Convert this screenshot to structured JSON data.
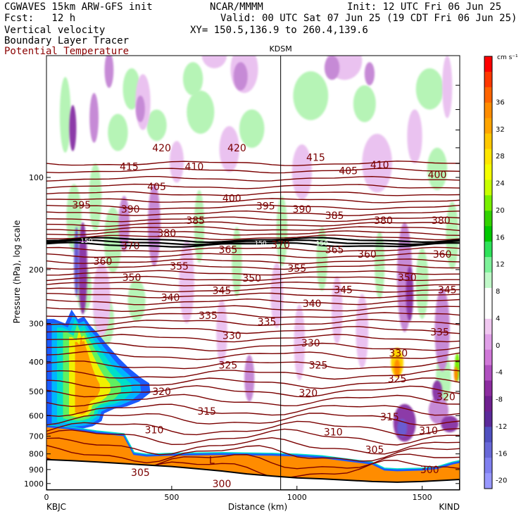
{
  "header": {
    "model": "CGWAVES 15km ARW-GFS init",
    "center": "NCAR/MMMM",
    "init": "Init: 12 UTC Fri 06 Jun 25",
    "fcst": "Fcst:   12 h",
    "valid": "Valid: 00 UTC Sat 07 Jun 25 (19 CDT Fri 06 Jun 25)",
    "field1": "Vertical velocity",
    "xy": "XY= 150.5,136.9 to 260.4,139.6",
    "field2": "Boundary Layer Tracer",
    "field3": "Potential Temperature",
    "field3_color": "#8b0000"
  },
  "chart_data": {
    "type": "heatmap",
    "title": "",
    "xlabel": "Distance (km)",
    "ylabel": "Pressure (hPa), log scale",
    "xlim": [
      0,
      1650
    ],
    "ylim_hpa": [
      1050,
      40
    ],
    "x_ticks": [
      0,
      500,
      1000,
      1500
    ],
    "y_ticks": [
      100,
      200,
      300,
      400,
      500,
      600,
      700,
      800,
      900,
      1000
    ],
    "endpoint_left": "KBJC",
    "endpoint_right": "KIND",
    "marker_station": "KDSM",
    "marker_x_km": 935,
    "colorbar": {
      "units": "cm s⁻¹",
      "labels": [
        "36",
        "32",
        "28",
        "24",
        "20",
        "16",
        "12",
        "8",
        "4",
        "0",
        "-4",
        "-8",
        "-12",
        "-16",
        "-20"
      ],
      "colors": [
        "#ff0000",
        "#ff3800",
        "#ff6400",
        "#ff8c00",
        "#ffa400",
        "#ffc800",
        "#ffe600",
        "#f5ff00",
        "#c8ff00",
        "#78f000",
        "#32d200",
        "#00c800",
        "#2ee25a",
        "#7ef29a",
        "#c0f8c8",
        "#ffffff",
        "#ffffff",
        "#f0c8f0",
        "#e0a0e8",
        "#d078d8",
        "#b050c0",
        "#8c2ca0",
        "#6f2090",
        "#5b2a9a",
        "#5050c0",
        "#6868d8",
        "#8080f0",
        "#9898ff"
      ]
    },
    "theta_contour_labels": [
      {
        "value": "420",
        "x_km": 460,
        "p": 80
      },
      {
        "value": "420",
        "x_km": 760,
        "p": 80
      },
      {
        "value": "415",
        "x_km": 330,
        "p": 92
      },
      {
        "value": "410",
        "x_km": 590,
        "p": 92
      },
      {
        "value": "415",
        "x_km": 1075,
        "p": 86
      },
      {
        "value": "405",
        "x_km": 1205,
        "p": 95
      },
      {
        "value": "410",
        "x_km": 1330,
        "p": 91
      },
      {
        "value": "400",
        "x_km": 1560,
        "p": 98
      },
      {
        "value": "405",
        "x_km": 440,
        "p": 107
      },
      {
        "value": "400",
        "x_km": 740,
        "p": 117
      },
      {
        "value": "395",
        "x_km": 875,
        "p": 124
      },
      {
        "value": "395",
        "x_km": 140,
        "p": 123
      },
      {
        "value": "390",
        "x_km": 335,
        "p": 127
      },
      {
        "value": "385",
        "x_km": 595,
        "p": 138
      },
      {
        "value": "390",
        "x_km": 1020,
        "p": 127
      },
      {
        "value": "385",
        "x_km": 1150,
        "p": 133
      },
      {
        "value": "380",
        "x_km": 1345,
        "p": 138
      },
      {
        "value": "380",
        "x_km": 480,
        "p": 152
      },
      {
        "value": "380",
        "x_km": 1575,
        "p": 138
      },
      {
        "value": "370",
        "x_km": 335,
        "p": 167
      },
      {
        "value": "365",
        "x_km": 725,
        "p": 172
      },
      {
        "value": "370",
        "x_km": 935,
        "p": 166
      },
      {
        "value": "365",
        "x_km": 1150,
        "p": 172
      },
      {
        "value": "360",
        "x_km": 225,
        "p": 188
      },
      {
        "value": "360",
        "x_km": 1280,
        "p": 178
      },
      {
        "value": "360",
        "x_km": 1580,
        "p": 178
      },
      {
        "value": "355",
        "x_km": 530,
        "p": 195
      },
      {
        "value": "355",
        "x_km": 1000,
        "p": 198
      },
      {
        "value": "350",
        "x_km": 340,
        "p": 212
      },
      {
        "value": "350",
        "x_km": 820,
        "p": 213
      },
      {
        "value": "350",
        "x_km": 1440,
        "p": 212
      },
      {
        "value": "345",
        "x_km": 700,
        "p": 234
      },
      {
        "value": "345",
        "x_km": 1185,
        "p": 233
      },
      {
        "value": "345",
        "x_km": 1600,
        "p": 233
      },
      {
        "value": "340",
        "x_km": 495,
        "p": 247
      },
      {
        "value": "340",
        "x_km": 1060,
        "p": 258
      },
      {
        "value": "335",
        "x_km": 645,
        "p": 282
      },
      {
        "value": "335",
        "x_km": 880,
        "p": 296
      },
      {
        "value": "335",
        "x_km": 1570,
        "p": 320
      },
      {
        "value": "330",
        "x_km": 740,
        "p": 328
      },
      {
        "value": "330",
        "x_km": 1055,
        "p": 347
      },
      {
        "value": "330",
        "x_km": 1405,
        "p": 375
      },
      {
        "value": "325",
        "x_km": 725,
        "p": 410
      },
      {
        "value": "325",
        "x_km": 1085,
        "p": 410
      },
      {
        "value": "325",
        "x_km": 1400,
        "p": 455
      },
      {
        "value": "320",
        "x_km": 460,
        "p": 500
      },
      {
        "value": "320",
        "x_km": 1045,
        "p": 505
      },
      {
        "value": "320",
        "x_km": 1595,
        "p": 520
      },
      {
        "value": "315",
        "x_km": 640,
        "p": 580
      },
      {
        "value": "315",
        "x_km": 1370,
        "p": 605
      },
      {
        "value": "310",
        "x_km": 430,
        "p": 668
      },
      {
        "value": "310",
        "x_km": 1145,
        "p": 678
      },
      {
        "value": "310",
        "x_km": 1525,
        "p": 672
      },
      {
        "value": "305",
        "x_km": 1310,
        "p": 775
      },
      {
        "value": "305",
        "x_km": 375,
        "p": 920
      },
      {
        "value": "300",
        "x_km": 700,
        "p": 1000
      },
      {
        "value": "300",
        "x_km": 1530,
        "p": 900
      }
    ],
    "pressure_marker_labels": [
      {
        "value": "150",
        "x_km": 160,
        "p": 160
      },
      {
        "value": "150",
        "x_km": 855,
        "p": 163
      },
      {
        "value": "150",
        "x_km": 1100,
        "p": 163
      }
    ],
    "low_marker": {
      "value": "L",
      "x_km": 660,
      "p": 860
    },
    "ascent_cells": [
      {
        "x_km": 75,
        "p": 65,
        "rx_km": 22,
        "rp": 18,
        "level": "0"
      },
      {
        "x_km": 110,
        "p": 140,
        "rx_km": 30,
        "rp": 35,
        "level": "0"
      },
      {
        "x_km": 195,
        "p": 120,
        "rx_km": 25,
        "rp": 30,
        "level": "0"
      },
      {
        "x_km": 265,
        "p": 165,
        "rx_km": 35,
        "rp": 40,
        "level": "0"
      },
      {
        "x_km": 150,
        "p": 235,
        "rx_km": 30,
        "rp": 40,
        "level": "0"
      },
      {
        "x_km": 230,
        "p": 300,
        "rx_km": 40,
        "rp": 60,
        "level": "0"
      },
      {
        "x_km": 340,
        "p": 52,
        "rx_km": 35,
        "rp": 8,
        "level": "0"
      },
      {
        "x_km": 585,
        "p": 48,
        "rx_km": 40,
        "rp": 6,
        "level": "0"
      },
      {
        "x_km": 285,
        "p": 72,
        "rx_km": 40,
        "rp": 10,
        "level": "0"
      },
      {
        "x_km": 440,
        "p": 68,
        "rx_km": 40,
        "rp": 8,
        "level": "0"
      },
      {
        "x_km": 615,
        "p": 62,
        "rx_km": 55,
        "rp": 10,
        "level": "0"
      },
      {
        "x_km": 820,
        "p": 70,
        "rx_km": 50,
        "rp": 10,
        "level": "0"
      },
      {
        "x_km": 1055,
        "p": 55,
        "rx_km": 70,
        "rp": 10,
        "level": "0"
      },
      {
        "x_km": 1270,
        "p": 58,
        "rx_km": 45,
        "rp": 8,
        "level": "0"
      },
      {
        "x_km": 1530,
        "p": 52,
        "rx_km": 55,
        "rp": 8,
        "level": "0"
      },
      {
        "x_km": 1560,
        "p": 95,
        "rx_km": 40,
        "rp": 15,
        "level": "0"
      },
      {
        "x_km": 610,
        "p": 150,
        "rx_km": 20,
        "rp": 40,
        "level": "0"
      },
      {
        "x_km": 760,
        "p": 195,
        "rx_km": 20,
        "rp": 50,
        "level": "0"
      },
      {
        "x_km": 940,
        "p": 155,
        "rx_km": 22,
        "rp": 40,
        "level": "0"
      },
      {
        "x_km": 1100,
        "p": 190,
        "rx_km": 22,
        "rp": 45,
        "level": "0"
      },
      {
        "x_km": 1330,
        "p": 200,
        "rx_km": 20,
        "rp": 50,
        "level": "0"
      },
      {
        "x_km": 1500,
        "p": 230,
        "rx_km": 25,
        "rp": 60,
        "level": "0"
      },
      {
        "x_km": 1620,
        "p": 160,
        "rx_km": 25,
        "rp": 40,
        "level": "0"
      },
      {
        "x_km": 360,
        "p": 255,
        "rx_km": 35,
        "rp": 40,
        "level": "0"
      },
      {
        "x_km": 1585,
        "p": 460,
        "rx_km": 30,
        "rp": 90,
        "level": "0"
      },
      {
        "x_km": 1400,
        "p": 405,
        "rx_km": 25,
        "rp": 45,
        "level": "8"
      },
      {
        "x_km": 1400,
        "p": 420,
        "rx_km": 12,
        "rp": 28,
        "level": "28"
      },
      {
        "x_km": 1640,
        "p": 420,
        "rx_km": 10,
        "rp": 45,
        "level": "16"
      },
      {
        "x_km": 1635,
        "p": 440,
        "rx_km": 8,
        "rp": 25,
        "level": "28"
      }
    ],
    "descent_cells": [
      {
        "x_km": 385,
        "p": 58,
        "rx_km": 30,
        "rp": 12,
        "level": "-4"
      },
      {
        "x_km": 375,
        "p": 60,
        "rx_km": 18,
        "rp": 6,
        "level": "-8"
      },
      {
        "x_km": 190,
        "p": 65,
        "rx_km": 18,
        "rp": 12,
        "level": "-8"
      },
      {
        "x_km": 250,
        "p": 45,
        "rx_km": 18,
        "rp": 6,
        "level": "-8"
      },
      {
        "x_km": 105,
        "p": 70,
        "rx_km": 14,
        "rp": 12,
        "level": "-12"
      },
      {
        "x_km": 520,
        "p": 90,
        "rx_km": 28,
        "rp": 14,
        "level": "-4"
      },
      {
        "x_km": 670,
        "p": 40,
        "rx_km": 50,
        "rp": 4,
        "level": "-4"
      },
      {
        "x_km": 790,
        "p": 45,
        "rx_km": 55,
        "rp": 8,
        "level": "-4"
      },
      {
        "x_km": 775,
        "p": 47,
        "rx_km": 28,
        "rp": 5,
        "level": "-8"
      },
      {
        "x_km": 730,
        "p": 82,
        "rx_km": 40,
        "rp": 14,
        "level": "-4"
      },
      {
        "x_km": 1190,
        "p": 42,
        "rx_km": 70,
        "rp": 6,
        "level": "-4"
      },
      {
        "x_km": 1140,
        "p": 44,
        "rx_km": 30,
        "rp": 4,
        "level": "-8"
      },
      {
        "x_km": 1290,
        "p": 46,
        "rx_km": 20,
        "rp": 4,
        "level": "-8"
      },
      {
        "x_km": 1600,
        "p": 52,
        "rx_km": 20,
        "rp": 12,
        "level": "-4"
      },
      {
        "x_km": 1470,
        "p": 75,
        "rx_km": 30,
        "rp": 15,
        "level": "-4"
      },
      {
        "x_km": 1320,
        "p": 92,
        "rx_km": 60,
        "rp": 20,
        "level": "-4"
      },
      {
        "x_km": 1020,
        "p": 98,
        "rx_km": 40,
        "rp": 20,
        "level": "-4"
      },
      {
        "x_km": 220,
        "p": 260,
        "rx_km": 35,
        "rp": 70,
        "level": "-4"
      },
      {
        "x_km": 145,
        "p": 210,
        "rx_km": 18,
        "rp": 70,
        "level": "-12"
      },
      {
        "x_km": 120,
        "p": 195,
        "rx_km": 10,
        "rp": 50,
        "level": "-16"
      },
      {
        "x_km": 430,
        "p": 150,
        "rx_km": 25,
        "rp": 45,
        "level": "-8"
      },
      {
        "x_km": 310,
        "p": 145,
        "rx_km": 22,
        "rp": 30,
        "level": "-8"
      },
      {
        "x_km": 560,
        "p": 230,
        "rx_km": 30,
        "rp": 70,
        "level": "-4"
      },
      {
        "x_km": 700,
        "p": 330,
        "rx_km": 22,
        "rp": 80,
        "level": "-4"
      },
      {
        "x_km": 810,
        "p": 460,
        "rx_km": 20,
        "rp": 80,
        "level": "-8"
      },
      {
        "x_km": 920,
        "p": 250,
        "rx_km": 25,
        "rp": 60,
        "level": "-4"
      },
      {
        "x_km": 1010,
        "p": 360,
        "rx_km": 22,
        "rp": 100,
        "level": "-4"
      },
      {
        "x_km": 1160,
        "p": 280,
        "rx_km": 22,
        "rp": 70,
        "level": "-4"
      },
      {
        "x_km": 1260,
        "p": 330,
        "rx_km": 25,
        "rp": 90,
        "level": "-4"
      },
      {
        "x_km": 1430,
        "p": 230,
        "rx_km": 30,
        "rp": 90,
        "level": "-8"
      },
      {
        "x_km": 1450,
        "p": 245,
        "rx_km": 15,
        "rp": 50,
        "level": "-12"
      },
      {
        "x_km": 1580,
        "p": 330,
        "rx_km": 30,
        "rp": 100,
        "level": "-8"
      },
      {
        "x_km": 1430,
        "p": 640,
        "rx_km": 45,
        "rp": 90,
        "level": "-12"
      },
      {
        "x_km": 1420,
        "p": 660,
        "rx_km": 20,
        "rp": 45,
        "level": "-16"
      },
      {
        "x_km": 1565,
        "p": 580,
        "rx_km": 40,
        "rp": 60,
        "level": "-8"
      },
      {
        "x_km": 1610,
        "p": 640,
        "rx_km": 35,
        "rp": 40,
        "level": "-12"
      },
      {
        "x_km": 1560,
        "p": 500,
        "rx_km": 20,
        "rp": 40,
        "level": "-12"
      }
    ],
    "boundary_layer_tracer_lobe": {
      "x_km": [
        0,
        30,
        75,
        100,
        125,
        150,
        175,
        200,
        240,
        290,
        330,
        375,
        410,
        415,
        370,
        320,
        270,
        230,
        220,
        185,
        150,
        110,
        60,
        25,
        0
      ],
      "p_hpa": [
        290,
        290,
        300,
        270,
        290,
        285,
        305,
        320,
        350,
        390,
        420,
        450,
        470,
        505,
        540,
        560,
        570,
        590,
        625,
        650,
        660,
        665,
        660,
        655,
        650
      ]
    },
    "boundary_layer_top": {
      "x_km": [
        0,
        90,
        200,
        310,
        320,
        350,
        400,
        500,
        700,
        900,
        1000,
        1100,
        1200,
        1300,
        1350,
        1400,
        1500,
        1560,
        1620,
        1650
      ],
      "p_hpa": [
        650,
        660,
        680,
        695,
        720,
        800,
        810,
        805,
        800,
        805,
        810,
        820,
        840,
        860,
        900,
        905,
        900,
        890,
        860,
        850
      ]
    },
    "terrain_p_hpa": {
      "x_km": [
        0,
        100,
        200,
        300,
        400,
        500,
        600,
        700,
        800,
        900,
        1000,
        1100,
        1200,
        1300,
        1400,
        1500,
        1600,
        1650
      ],
      "p_hpa": [
        835,
        842,
        850,
        860,
        870,
        880,
        895,
        910,
        930,
        945,
        958,
        965,
        975,
        985,
        990,
        985,
        975,
        970
      ]
    },
    "theta_isentrope_p_hpa": [
      90,
      95,
      101,
      107,
      113,
      119,
      125,
      131,
      137,
      142,
      147,
      152,
      157,
      160,
      163,
      166,
      172,
      180,
      188,
      196,
      205,
      214,
      223,
      233,
      243,
      255,
      268,
      282,
      298,
      315,
      335,
      358,
      382,
      410,
      440,
      470,
      500,
      535,
      575,
      615,
      660,
      705,
      755,
      800,
      850,
      900
    ]
  }
}
